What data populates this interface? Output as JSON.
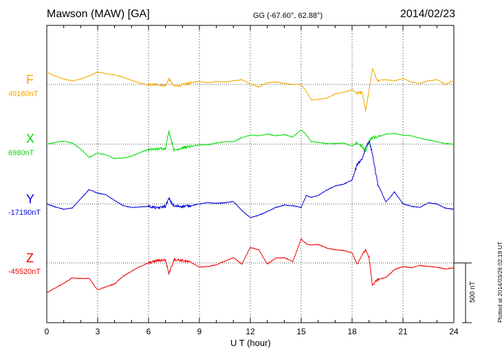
{
  "header": {
    "station": "Mawson (MAW)  [GA]",
    "coords": "GG (-67.60°,  62.88°)",
    "date": "2014/02/23"
  },
  "footer": {
    "xlabel": "U T (hour)",
    "plotted": "Plotted at 2014/03/26 02:19 UT",
    "scale_label": "500 nT"
  },
  "chart_data": {
    "type": "line",
    "title": "Mawson (MAW)  [GA]",
    "subtitle": "GG (-67.60°,  62.88°)",
    "date": "2014/02/23",
    "xlabel": "U T (hour)",
    "ylabel": "",
    "xlim": [
      0,
      24
    ],
    "x_ticks": [
      0,
      3,
      6,
      9,
      12,
      15,
      18,
      21,
      24
    ],
    "x_tick_labels": [
      "0",
      "3",
      "6",
      "9",
      "12",
      "15",
      "18",
      "21",
      "24"
    ],
    "scale_bar_nT": 500,
    "grid": true,
    "series": [
      {
        "name": "F",
        "baseline_label": "49160nT",
        "baseline_nT": 49160,
        "color": "#f5a800",
        "x": [
          0,
          0.5,
          1,
          1.5,
          2,
          2.5,
          3,
          3.5,
          4,
          4.5,
          5,
          5.5,
          6,
          6.5,
          7,
          7.2,
          7.5,
          8,
          8.5,
          9,
          9.5,
          10,
          10.5,
          11,
          11.5,
          12,
          12.5,
          13,
          13.5,
          14,
          14.5,
          15,
          15.3,
          15.6,
          16,
          16.5,
          17,
          17.5,
          18,
          18.3,
          18.6,
          18.8,
          19,
          19.2,
          19.5,
          20,
          20.5,
          21,
          21.5,
          22,
          22.5,
          23,
          23.5,
          24
        ],
        "values": [
          100,
          70,
          45,
          30,
          45,
          70,
          105,
          90,
          80,
          60,
          35,
          10,
          -5,
          0,
          -10,
          45,
          -15,
          -5,
          15,
          25,
          15,
          25,
          20,
          30,
          40,
          5,
          -20,
          15,
          20,
          10,
          0,
          0,
          -60,
          -130,
          -125,
          -115,
          -80,
          -65,
          -45,
          -75,
          -60,
          -220,
          -50,
          130,
          35,
          40,
          30,
          50,
          20,
          10,
          30,
          40,
          0,
          35
        ]
      },
      {
        "name": "X",
        "baseline_label": "6980nT",
        "baseline_nT": 6980,
        "color": "#00dd00",
        "x": [
          0,
          0.5,
          1,
          1.5,
          2,
          2.5,
          3,
          3.5,
          4,
          4.5,
          5,
          5.5,
          6,
          6.5,
          7,
          7.2,
          7.5,
          8,
          8.5,
          9,
          9.5,
          10,
          10.5,
          11,
          11.5,
          12,
          12.5,
          13,
          13.5,
          14,
          14.5,
          15,
          15.3,
          15.6,
          16,
          16.5,
          17,
          17.5,
          18,
          18.3,
          18.6,
          18.8,
          19,
          19.2,
          19.5,
          20,
          20.5,
          21,
          21.5,
          22,
          22.5,
          23,
          23.5,
          24
        ],
        "values": [
          0,
          15,
          25,
          10,
          -40,
          -110,
          -75,
          -90,
          -120,
          -115,
          -100,
          -70,
          -45,
          -40,
          -35,
          110,
          -50,
          -30,
          -20,
          -5,
          -5,
          10,
          20,
          20,
          55,
          75,
          70,
          85,
          70,
          80,
          60,
          120,
          80,
          20,
          15,
          5,
          5,
          10,
          -15,
          10,
          -20,
          -65,
          25,
          55,
          60,
          85,
          90,
          75,
          70,
          50,
          35,
          20,
          5,
          0
        ]
      },
      {
        "name": "Y",
        "baseline_label": "-17190nT",
        "baseline_nT": -17190,
        "color": "#0000dd",
        "x": [
          0,
          0.5,
          1,
          1.5,
          2,
          2.5,
          3,
          3.5,
          4,
          4.5,
          5,
          5.5,
          6,
          6.5,
          7,
          7.2,
          7.5,
          8,
          8.5,
          9,
          9.5,
          10,
          10.5,
          11,
          11.5,
          12,
          12.5,
          13,
          13.5,
          14,
          14.5,
          15,
          15.3,
          15.6,
          16,
          16.5,
          17,
          17.5,
          18,
          18.3,
          18.6,
          18.8,
          19,
          19.2,
          19.5,
          20,
          20.5,
          21,
          21.5,
          22,
          22.5,
          23,
          23.5,
          24
        ],
        "values": [
          0,
          -25,
          -45,
          -35,
          45,
          120,
          90,
          75,
          30,
          -15,
          -30,
          -25,
          -20,
          -35,
          -20,
          45,
          -20,
          -20,
          -15,
          0,
          10,
          5,
          10,
          20,
          -55,
          -115,
          -95,
          -65,
          -30,
          -10,
          -15,
          -30,
          70,
          55,
          70,
          115,
          150,
          165,
          200,
          330,
          380,
          470,
          530,
          420,
          170,
          15,
          100,
          0,
          -20,
          -30,
          10,
          0,
          -35,
          -45
        ]
      },
      {
        "name": "Z",
        "baseline_label": "-45520nT",
        "baseline_nT": -45520,
        "color": "#ee0000",
        "x": [
          0,
          0.5,
          1,
          1.5,
          2,
          2.5,
          3,
          3.5,
          4,
          4.5,
          5,
          5.5,
          6,
          6.5,
          7,
          7.2,
          7.5,
          8,
          8.5,
          9,
          9.5,
          10,
          10.5,
          11,
          11.5,
          12,
          12.5,
          13,
          13.5,
          14,
          14.5,
          15,
          15.3,
          15.6,
          16,
          16.5,
          17,
          17.5,
          18,
          18.3,
          18.6,
          18.8,
          19,
          19.2,
          19.5,
          20,
          20.5,
          21,
          21.5,
          22,
          22.5,
          23,
          23.5,
          24
        ],
        "values": [
          -250,
          -210,
          -170,
          -125,
          -130,
          -130,
          -225,
          -200,
          -175,
          -110,
          -70,
          -30,
          0,
          20,
          25,
          -90,
          30,
          20,
          5,
          -35,
          -30,
          -15,
          15,
          45,
          -10,
          130,
          110,
          -10,
          40,
          45,
          10,
          200,
          160,
          150,
          155,
          125,
          110,
          105,
          85,
          -15,
          65,
          115,
          45,
          -190,
          -140,
          -120,
          -55,
          -30,
          -40,
          -20,
          -30,
          -35,
          -50,
          -40
        ]
      }
    ]
  }
}
